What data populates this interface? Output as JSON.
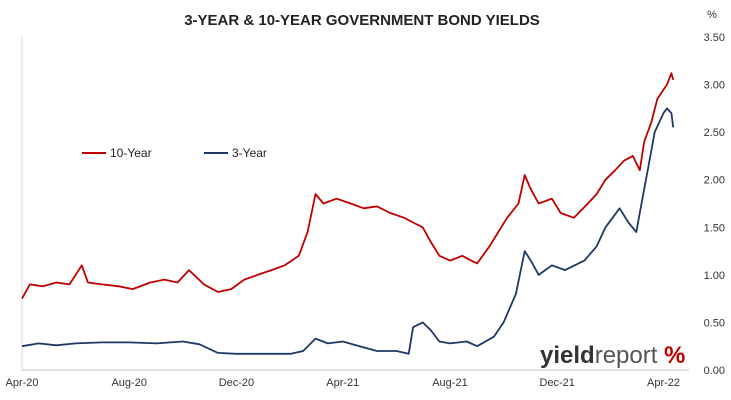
{
  "chart_data": {
    "type": "line",
    "title": "3-YEAR & 10-YEAR GOVERNMENT BOND YIELDS",
    "unit": "%",
    "ylim": [
      0,
      3.5
    ],
    "yticks": [
      "0.00",
      "0.50",
      "1.00",
      "1.50",
      "2.00",
      "2.50",
      "3.00",
      "3.50"
    ],
    "x_tick_labels": [
      "Apr-20",
      "Aug-20",
      "Dec-20",
      "Apr-21",
      "Aug-21",
      "Dec-21",
      "Apr-22"
    ],
    "xlim": [
      "2020-04-01",
      "2022-04-30"
    ],
    "grid": "none",
    "legend_position": "upper-left",
    "series": [
      {
        "name": "10-Year",
        "color": "#c00000",
        "points": [
          [
            "2020-04-01",
            0.75
          ],
          [
            "2020-04-10",
            0.9
          ],
          [
            "2020-04-25",
            0.88
          ],
          [
            "2020-05-10",
            0.92
          ],
          [
            "2020-05-25",
            0.9
          ],
          [
            "2020-06-08",
            1.1
          ],
          [
            "2020-06-15",
            0.92
          ],
          [
            "2020-07-01",
            0.9
          ],
          [
            "2020-07-20",
            0.88
          ],
          [
            "2020-08-05",
            0.85
          ],
          [
            "2020-08-25",
            0.92
          ],
          [
            "2020-09-10",
            0.95
          ],
          [
            "2020-09-25",
            0.92
          ],
          [
            "2020-10-08",
            1.05
          ],
          [
            "2020-10-25",
            0.9
          ],
          [
            "2020-11-10",
            0.82
          ],
          [
            "2020-11-25",
            0.85
          ],
          [
            "2020-12-10",
            0.95
          ],
          [
            "2020-12-25",
            1.0
          ],
          [
            "2021-01-10",
            1.05
          ],
          [
            "2021-01-25",
            1.1
          ],
          [
            "2021-02-10",
            1.2
          ],
          [
            "2021-02-20",
            1.45
          ],
          [
            "2021-03-01",
            1.85
          ],
          [
            "2021-03-10",
            1.75
          ],
          [
            "2021-03-25",
            1.8
          ],
          [
            "2021-04-10",
            1.75
          ],
          [
            "2021-04-25",
            1.7
          ],
          [
            "2021-05-10",
            1.72
          ],
          [
            "2021-05-25",
            1.65
          ],
          [
            "2021-06-10",
            1.6
          ],
          [
            "2021-06-20",
            1.55
          ],
          [
            "2021-07-01",
            1.5
          ],
          [
            "2021-07-10",
            1.35
          ],
          [
            "2021-07-20",
            1.2
          ],
          [
            "2021-08-01",
            1.15
          ],
          [
            "2021-08-15",
            1.2
          ],
          [
            "2021-08-25",
            1.15
          ],
          [
            "2021-09-01",
            1.12
          ],
          [
            "2021-09-15",
            1.3
          ],
          [
            "2021-09-25",
            1.45
          ],
          [
            "2021-10-05",
            1.6
          ],
          [
            "2021-10-18",
            1.75
          ],
          [
            "2021-10-25",
            2.05
          ],
          [
            "2021-11-01",
            1.9
          ],
          [
            "2021-11-10",
            1.75
          ],
          [
            "2021-11-25",
            1.8
          ],
          [
            "2021-12-05",
            1.65
          ],
          [
            "2021-12-20",
            1.6
          ],
          [
            "2022-01-05",
            1.75
          ],
          [
            "2022-01-15",
            1.85
          ],
          [
            "2022-01-25",
            2.0
          ],
          [
            "2022-02-05",
            2.1
          ],
          [
            "2022-02-15",
            2.2
          ],
          [
            "2022-02-25",
            2.25
          ],
          [
            "2022-03-05",
            2.1
          ],
          [
            "2022-03-10",
            2.4
          ],
          [
            "2022-03-18",
            2.6
          ],
          [
            "2022-03-25",
            2.85
          ],
          [
            "2022-04-05",
            3.0
          ],
          [
            "2022-04-10",
            3.12
          ],
          [
            "2022-04-12",
            3.05
          ]
        ]
      },
      {
        "name": "3-Year",
        "color": "#1f3864",
        "points": [
          [
            "2020-04-01",
            0.25
          ],
          [
            "2020-04-20",
            0.28
          ],
          [
            "2020-05-10",
            0.26
          ],
          [
            "2020-06-01",
            0.28
          ],
          [
            "2020-07-01",
            0.29
          ],
          [
            "2020-08-01",
            0.29
          ],
          [
            "2020-09-01",
            0.28
          ],
          [
            "2020-10-01",
            0.3
          ],
          [
            "2020-10-20",
            0.27
          ],
          [
            "2020-11-10",
            0.18
          ],
          [
            "2020-12-01",
            0.17
          ],
          [
            "2021-01-01",
            0.17
          ],
          [
            "2021-02-01",
            0.17
          ],
          [
            "2021-02-15",
            0.2
          ],
          [
            "2021-03-01",
            0.33
          ],
          [
            "2021-03-15",
            0.28
          ],
          [
            "2021-04-01",
            0.3
          ],
          [
            "2021-04-20",
            0.25
          ],
          [
            "2021-05-10",
            0.2
          ],
          [
            "2021-06-01",
            0.2
          ],
          [
            "2021-06-15",
            0.17
          ],
          [
            "2021-06-20",
            0.45
          ],
          [
            "2021-07-01",
            0.5
          ],
          [
            "2021-07-10",
            0.42
          ],
          [
            "2021-07-20",
            0.3
          ],
          [
            "2021-08-01",
            0.28
          ],
          [
            "2021-08-20",
            0.3
          ],
          [
            "2021-09-01",
            0.25
          ],
          [
            "2021-09-20",
            0.35
          ],
          [
            "2021-10-01",
            0.5
          ],
          [
            "2021-10-15",
            0.8
          ],
          [
            "2021-10-25",
            1.25
          ],
          [
            "2021-11-01",
            1.15
          ],
          [
            "2021-11-10",
            1.0
          ],
          [
            "2021-11-25",
            1.1
          ],
          [
            "2021-12-10",
            1.05
          ],
          [
            "2022-01-01",
            1.15
          ],
          [
            "2022-01-15",
            1.3
          ],
          [
            "2022-01-25",
            1.5
          ],
          [
            "2022-02-10",
            1.7
          ],
          [
            "2022-02-20",
            1.55
          ],
          [
            "2022-03-01",
            1.45
          ],
          [
            "2022-03-08",
            1.8
          ],
          [
            "2022-03-15",
            2.15
          ],
          [
            "2022-03-22",
            2.5
          ],
          [
            "2022-04-01",
            2.7
          ],
          [
            "2022-04-05",
            2.75
          ],
          [
            "2022-04-10",
            2.7
          ],
          [
            "2022-04-12",
            2.55
          ]
        ]
      }
    ]
  },
  "logo": {
    "text_yield": "yield",
    "text_report": "report",
    "pct_glyph": "%",
    "pct_colors": [
      "#c00000",
      "#2e7d32"
    ]
  }
}
